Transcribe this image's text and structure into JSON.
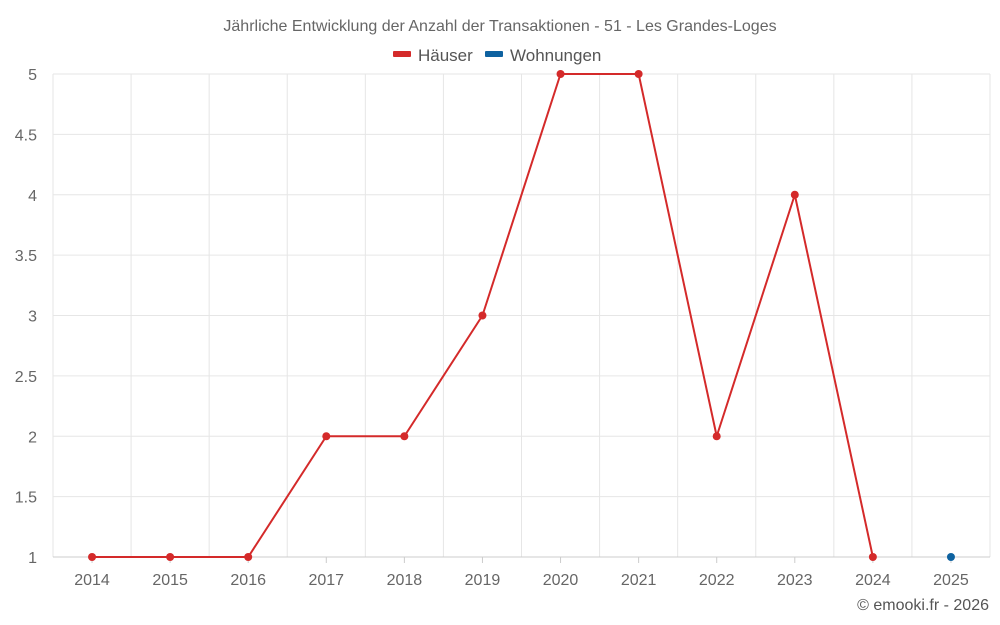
{
  "chart_data": {
    "type": "line",
    "title": "Jährliche Entwicklung der Anzahl der Transaktionen - 51 - Les Grandes-Loges",
    "categories": [
      "2014",
      "2015",
      "2016",
      "2017",
      "2018",
      "2019",
      "2020",
      "2021",
      "2022",
      "2023",
      "2024",
      "2025"
    ],
    "series": [
      {
        "name": "Häuser",
        "color": "#d42a2a",
        "values": [
          1,
          1,
          1,
          2,
          2,
          3,
          5,
          5,
          2,
          4,
          1,
          null
        ]
      },
      {
        "name": "Wohnungen",
        "color": "#0e62a0",
        "values": [
          null,
          null,
          null,
          null,
          null,
          null,
          null,
          null,
          null,
          null,
          null,
          1
        ]
      }
    ],
    "yticks": [
      "1",
      "1.5",
      "2",
      "2.5",
      "3",
      "3.5",
      "4",
      "4.5",
      "5"
    ],
    "ylim": [
      1,
      5
    ],
    "grid": true,
    "legend_position": "top-center"
  },
  "credit": "© emooki.fr - 2026"
}
